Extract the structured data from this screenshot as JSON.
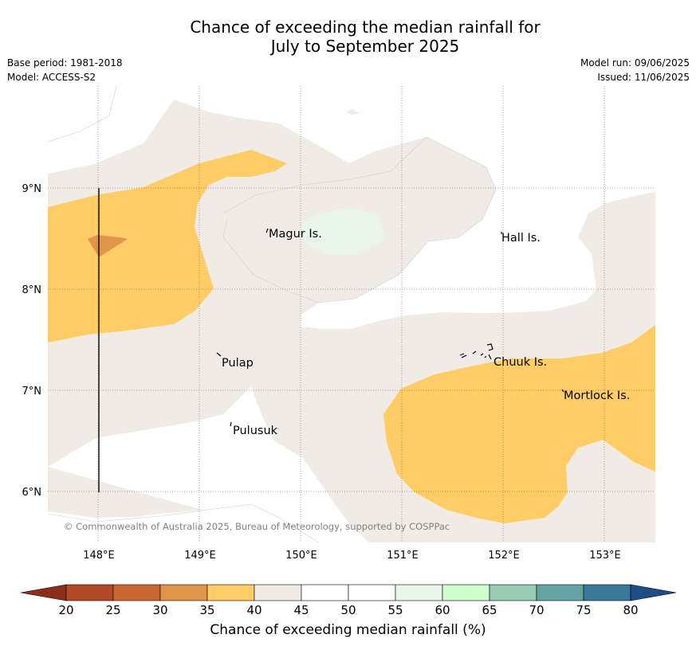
{
  "title": {
    "line1": "Chance of exceeding the median rainfall for",
    "line2": "July to September 2025"
  },
  "meta": {
    "base_period": "Base period: 1981-2018",
    "model": "Model: ACCESS-S2",
    "model_run": "Model run: 09/06/2025",
    "issued": "Issued: 11/06/2025"
  },
  "map": {
    "lon_ticks": [
      "148°E",
      "149°E",
      "150°E",
      "151°E",
      "152°E",
      "153°E"
    ],
    "lat_ticks": [
      "9°N",
      "8°N",
      "7°N",
      "6°N"
    ],
    "places": [
      {
        "name": "Magur Is."
      },
      {
        "name": "Hall Is."
      },
      {
        "name": "Pulap"
      },
      {
        "name": "Chuuk Is."
      },
      {
        "name": "Mortlock Is."
      },
      {
        "name": "Pulusuk"
      }
    ],
    "copyright": "© Commonwealth of Australia 2025, Bureau of Meteorology, supported by COSPPac",
    "colors": {
      "c30_35": "#e0954a",
      "c35_40": "#ffcc66",
      "c40_45": "#f0ebe5",
      "c45_55": "#ffffff",
      "c55_60": "#eaf5e9"
    }
  },
  "colorbar": {
    "ticks": [
      "20",
      "25",
      "30",
      "35",
      "40",
      "45",
      "50",
      "55",
      "60",
      "65",
      "70",
      "75",
      "80"
    ],
    "colors": [
      "#b04a26",
      "#cc6633",
      "#e0954a",
      "#ffcc66",
      "#f0ebe5",
      "#ffffff",
      "#ffffff",
      "#eaf5e9",
      "#ccffcc",
      "#99ccb3",
      "#66a3a3",
      "#3b7799"
    ],
    "under_color": "#8b2f1a",
    "over_color": "#1d4f86",
    "label": "Chance of exceeding median rainfall (%)"
  }
}
